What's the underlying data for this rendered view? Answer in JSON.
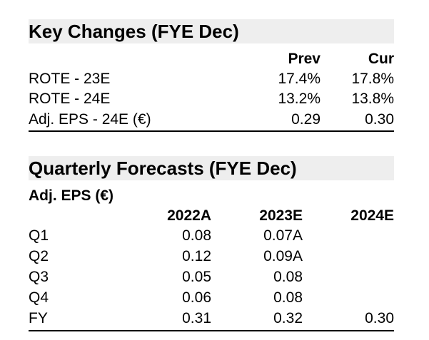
{
  "key_changes": {
    "title": "Key Changes (FYE Dec)",
    "columns": [
      "Prev",
      "Cur"
    ],
    "rows": [
      {
        "label": "ROTE - 23E",
        "prev": "17.4%",
        "cur": "17.8%"
      },
      {
        "label": "ROTE - 24E",
        "prev": "13.2%",
        "cur": "13.8%"
      },
      {
        "label": "Adj. EPS - 24E (€)",
        "prev": "0.29",
        "cur": "0.30"
      }
    ]
  },
  "quarterly": {
    "title": "Quarterly Forecasts (FYE Dec)",
    "subtitle": "Adj. EPS  (€)",
    "columns": [
      "2022A",
      "2023E",
      "2024E"
    ],
    "rows": [
      {
        "label": "Q1",
        "v2022": "0.08",
        "v2023": "0.07A",
        "v2024": ""
      },
      {
        "label": "Q2",
        "v2022": "0.12",
        "v2023": "0.09A",
        "v2024": ""
      },
      {
        "label": "Q3",
        "v2022": "0.05",
        "v2023": "0.08",
        "v2024": ""
      },
      {
        "label": "Q4",
        "v2022": "0.06",
        "v2023": "0.08",
        "v2024": ""
      },
      {
        "label": "FY",
        "v2022": "0.31",
        "v2023": "0.32",
        "v2024": "0.30"
      }
    ]
  }
}
